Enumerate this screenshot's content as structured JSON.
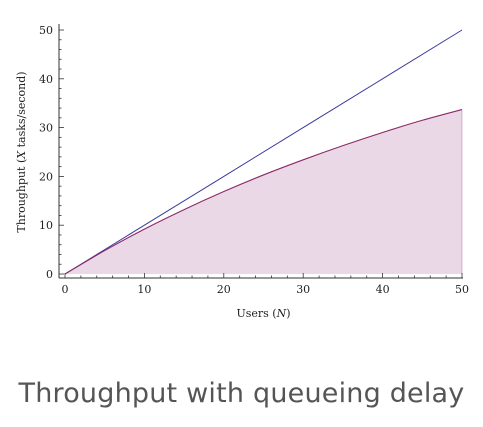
{
  "chart_data": {
    "type": "area",
    "xlabel_prefix": "Users (",
    "xlabel_var": "N",
    "xlabel_suffix": ")",
    "ylabel_prefix": "Throughput (",
    "ylabel_var": "X",
    "ylabel_suffix": " tasks/second)",
    "xlim": [
      0,
      50
    ],
    "ylim": [
      0,
      50
    ],
    "x_ticks": [
      "0",
      "10",
      "20",
      "30",
      "40",
      "50"
    ],
    "y_ticks": [
      "0",
      "10",
      "20",
      "30",
      "40",
      "50"
    ],
    "x_tick_values": [
      0,
      10,
      20,
      30,
      40,
      50
    ],
    "y_tick_values": [
      0,
      10,
      20,
      30,
      40,
      50
    ],
    "series": [
      {
        "kind": "line",
        "color": "#3a3a9e",
        "x": [
          0,
          10,
          20,
          30,
          40,
          50
        ],
        "y": [
          0,
          10,
          20,
          30,
          40,
          50
        ]
      },
      {
        "kind": "area",
        "color": "#8b2a6a",
        "fill": "#ead8e6",
        "x": [
          0,
          5,
          10,
          15,
          20,
          25,
          30,
          35,
          40,
          45,
          50
        ],
        "y": [
          0,
          4.8,
          9.2,
          13.2,
          16.9,
          20.3,
          23.4,
          26.3,
          29.0,
          31.5,
          33.7
        ]
      }
    ],
    "grid": false
  },
  "caption": "Throughput with queueing delay"
}
